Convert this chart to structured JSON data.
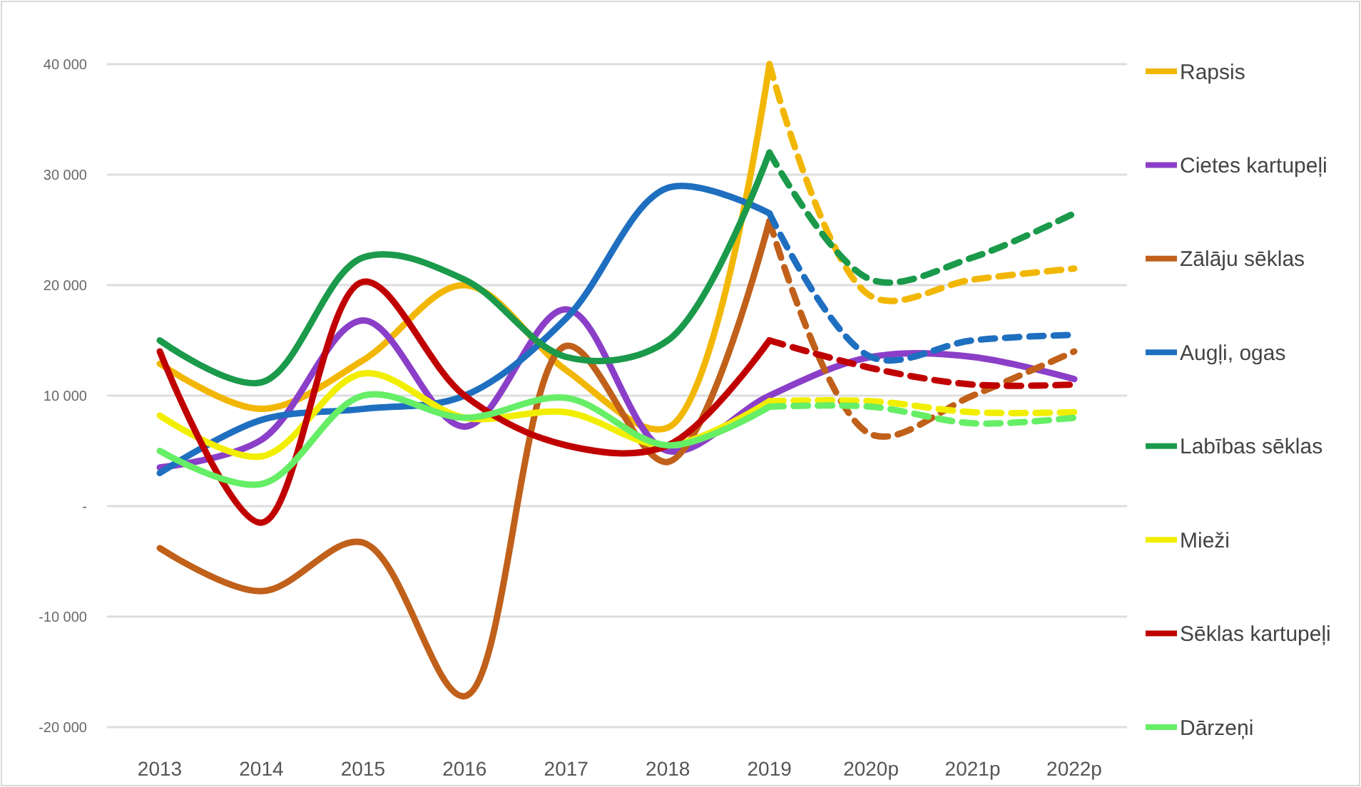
{
  "chart_data": {
    "type": "line",
    "categories": [
      "2013",
      "2014",
      "2015",
      "2016",
      "2017",
      "2018",
      "2019",
      "2020p",
      "2021p",
      "2022p"
    ],
    "ylim": [
      -20000,
      40000
    ],
    "yticks": [
      {
        "value": -20000,
        "label": "-20 000"
      },
      {
        "value": -10000,
        "label": "-10 000"
      },
      {
        "value": 0,
        "label": "-"
      },
      {
        "value": 10000,
        "label": "10 000"
      },
      {
        "value": 20000,
        "label": "20 000"
      },
      {
        "value": 30000,
        "label": "30 000"
      },
      {
        "value": 40000,
        "label": "40 000"
      }
    ],
    "grid": "y",
    "legend": "right",
    "marker": "none",
    "line_style": "solid",
    "series": [
      {
        "name": "Rapsis",
        "color": "#f2b705",
        "values": [
          12900,
          8800,
          13200,
          20000,
          12300,
          7100,
          40000,
          null,
          null,
          null
        ]
      },
      {
        "name": "Cietes kartupeļi",
        "color": "#8b3fc8",
        "values": [
          3500,
          6000,
          16800,
          7200,
          17800,
          5000,
          10000,
          13500,
          13500,
          11500
        ]
      },
      {
        "name": "Zālāju sēklas",
        "color": "#c0601a",
        "values": [
          -3800,
          -7700,
          -3300,
          -17200,
          14500,
          4000,
          25800,
          null,
          null,
          null
        ]
      },
      {
        "name": "Augļi, ogas",
        "color": "#1f6fc0",
        "values": [
          3000,
          7800,
          8800,
          10000,
          17000,
          28800,
          26500,
          null,
          null,
          null
        ]
      },
      {
        "name": "Labības sēklas",
        "color": "#1a9a4a",
        "values": [
          15000,
          11200,
          22500,
          20500,
          13500,
          15000,
          32000,
          null,
          null,
          null
        ]
      },
      {
        "name": "Mieži",
        "color": "#f2ee00",
        "values": [
          8200,
          4500,
          12000,
          8000,
          8500,
          5500,
          9500,
          null,
          null,
          null
        ]
      },
      {
        "name": "Sēklas kartupeļi",
        "color": "#c00000",
        "values": [
          14000,
          -1500,
          20300,
          10000,
          5500,
          5500,
          15000,
          null,
          null,
          null
        ]
      },
      {
        "name": "Dārzeņi",
        "color": "#66ee66",
        "values": [
          5000,
          2000,
          10000,
          8000,
          9800,
          5500,
          9000,
          null,
          null,
          null
        ]
      },
      {
        "color": "#f2b705",
        "line_style": "dashed",
        "values": [
          null,
          null,
          null,
          null,
          null,
          null,
          40000,
          19000,
          20500,
          21500
        ]
      },
      {
        "color": "#c0601a",
        "line_style": "dashed",
        "values": [
          null,
          null,
          null,
          null,
          null,
          null,
          25800,
          6500,
          10000,
          14000
        ]
      },
      {
        "color": "#1f6fc0",
        "line_style": "dashed",
        "values": [
          null,
          null,
          null,
          null,
          null,
          null,
          26500,
          13500,
          15000,
          15500
        ]
      },
      {
        "color": "#1a9a4a",
        "line_style": "dashed",
        "values": [
          null,
          null,
          null,
          null,
          null,
          null,
          32000,
          20500,
          22500,
          26500
        ]
      },
      {
        "color": "#f2ee00",
        "line_style": "dashed",
        "values": [
          null,
          null,
          null,
          null,
          null,
          null,
          9500,
          9500,
          8500,
          8500
        ]
      },
      {
        "color": "#c00000",
        "line_style": "dashed",
        "values": [
          null,
          null,
          null,
          null,
          null,
          null,
          15000,
          12500,
          11000,
          11000
        ]
      },
      {
        "color": "#66ee66",
        "line_style": "dashed",
        "values": [
          null,
          null,
          null,
          null,
          null,
          null,
          9000,
          9000,
          7500,
          8000
        ]
      }
    ]
  }
}
